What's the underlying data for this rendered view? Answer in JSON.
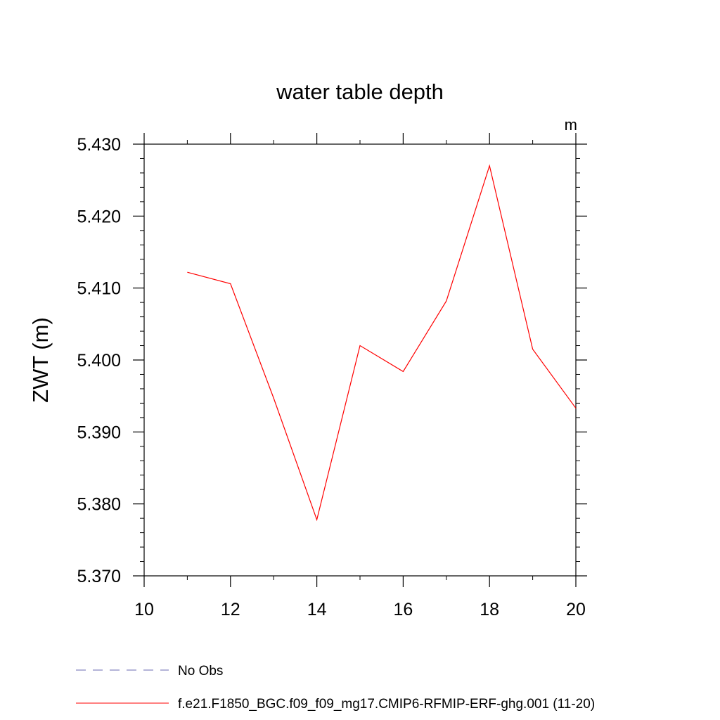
{
  "chart_data": {
    "type": "line",
    "title": "water table depth",
    "units": "m",
    "xlabel": "",
    "ylabel": "ZWT  (m)",
    "xlim": [
      10,
      20
    ],
    "ylim": [
      5.37,
      5.43
    ],
    "x_ticks": [
      10,
      12,
      14,
      16,
      18,
      20
    ],
    "x_tick_labels": [
      "10",
      "12",
      "14",
      "16",
      "18",
      "20"
    ],
    "y_ticks": [
      5.37,
      5.38,
      5.39,
      5.4,
      5.41,
      5.42,
      5.43
    ],
    "y_tick_labels": [
      "5.370",
      "5.380",
      "5.390",
      "5.400",
      "5.410",
      "5.420",
      "5.430"
    ],
    "grid": false,
    "legend_position": "bottom",
    "series": [
      {
        "name": "No Obs",
        "color": "#6a6ab0",
        "style": "dashed",
        "x": [],
        "y": []
      },
      {
        "name": "f.e21.F1850_BGC.f09_f09_mg17.CMIP6-RFMIP-ERF-ghg.001 (11-20)",
        "color": "#ff0000",
        "style": "solid",
        "x": [
          11,
          12,
          13,
          14,
          15,
          16,
          17,
          18,
          19,
          20
        ],
        "y": [
          5.4122,
          5.4106,
          5.3947,
          5.3778,
          5.402,
          5.3984,
          5.4082,
          5.427,
          5.4015,
          5.3933
        ]
      }
    ]
  }
}
